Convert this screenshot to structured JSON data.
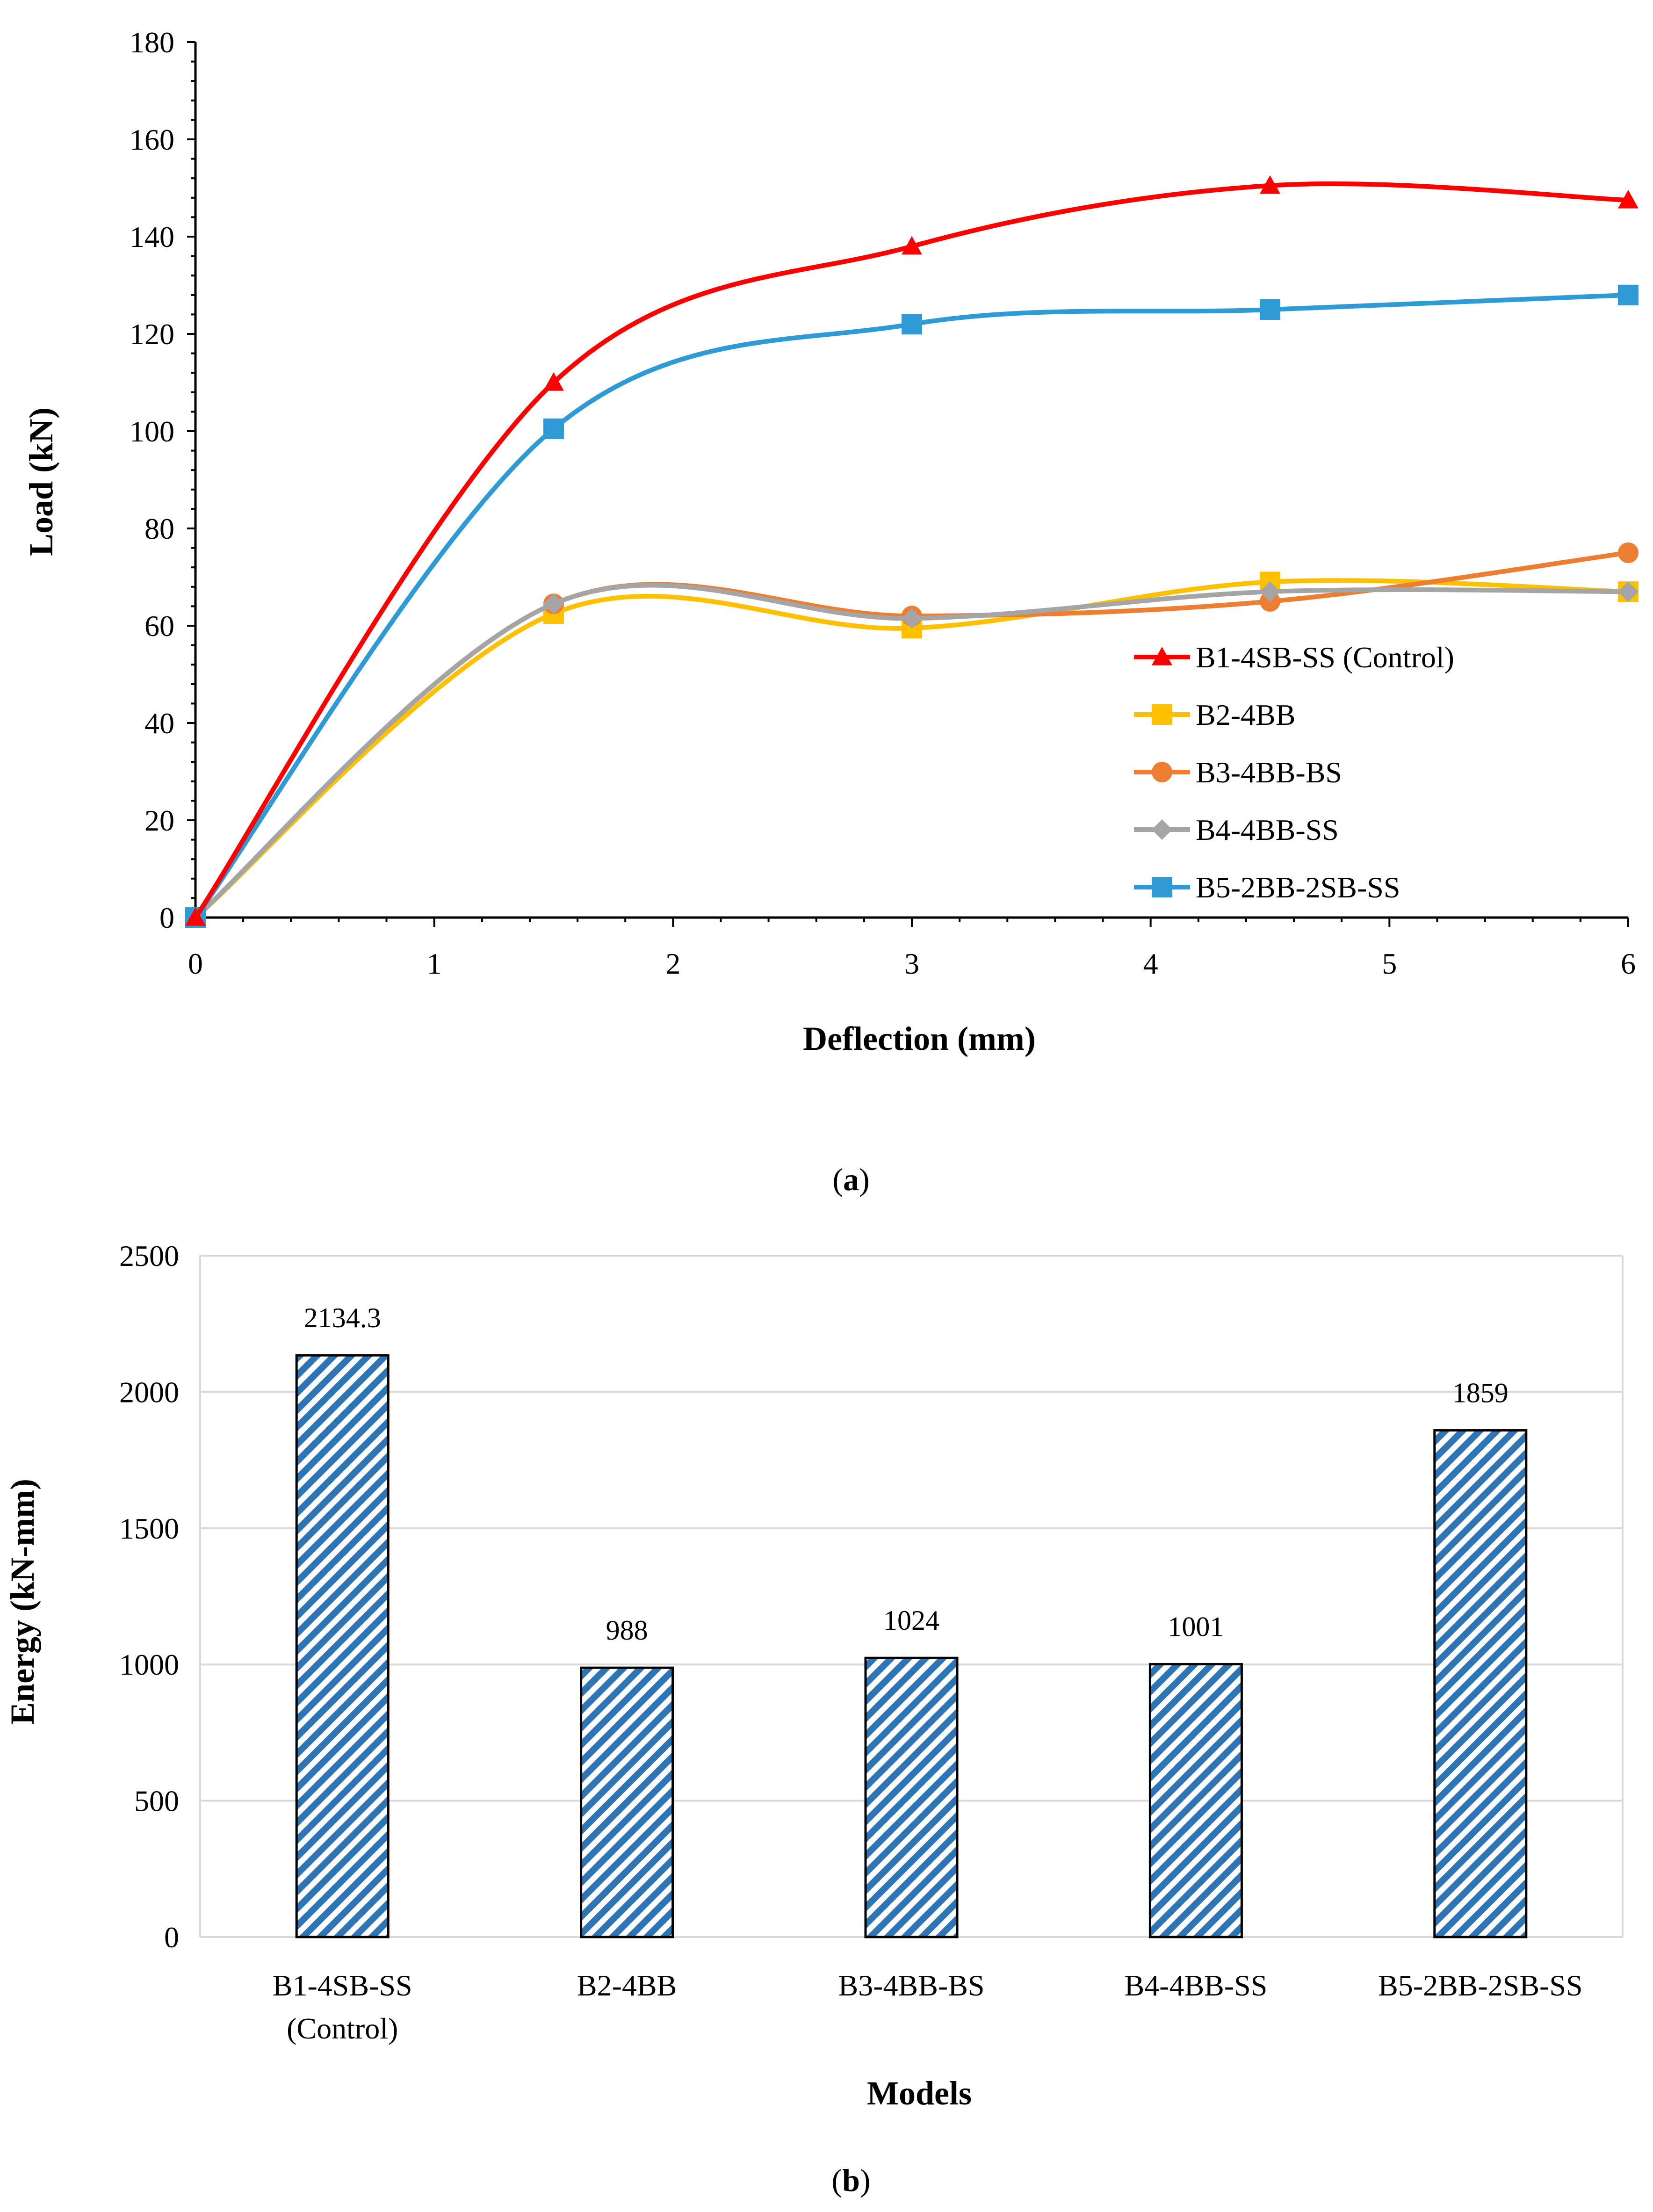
{
  "chart_data": [
    {
      "type": "line",
      "panel": "a",
      "xlabel": "Deflection (mm)",
      "ylabel": "Load (kN)",
      "xlim": [
        0,
        6
      ],
      "ylim": [
        0,
        180
      ],
      "x_ticks": [
        "0",
        "1",
        "2",
        "3",
        "4",
        "5",
        "6"
      ],
      "y_ticks": [
        "0",
        "20",
        "40",
        "60",
        "80",
        "100",
        "120",
        "140",
        "160",
        "180"
      ],
      "x": [
        0,
        1.5,
        3,
        4.5,
        6
      ],
      "series": [
        {
          "name": "B1-4SB-SS (Control)",
          "color": "#ff0000",
          "marker": "triangle",
          "values": [
            0,
            110,
            138,
            150.5,
            147.5
          ]
        },
        {
          "name": "B2-4BB",
          "color": "#ffc000",
          "marker": "square",
          "values": [
            0,
            62.5,
            59.5,
            69,
            67
          ]
        },
        {
          "name": "B3-4BB-BS",
          "color": "#ed7d31",
          "marker": "circle",
          "values": [
            0,
            64.5,
            62,
            65,
            75
          ]
        },
        {
          "name": "B4-4BB-SS",
          "color": "#a5a5a5",
          "marker": "diamond",
          "values": [
            0,
            64.5,
            61.5,
            67,
            67
          ]
        },
        {
          "name": "B5-2BB-2SB-SS",
          "color": "#2e9bd6",
          "marker": "square",
          "values": [
            0,
            100.5,
            122,
            125,
            128
          ]
        }
      ],
      "legend": [
        " B1-4SB-SS (Control)",
        " B2-4BB",
        " B3-4BB-BS",
        " B4-4BB-SS",
        " B5-2BB-2SB-SS"
      ],
      "legend_position": "bottom-right",
      "caption": "a"
    },
    {
      "type": "bar",
      "panel": "b",
      "xlabel": "Models",
      "ylabel": "Energy (kN-mm)",
      "ylim": [
        0,
        2500
      ],
      "y_ticks": [
        "0",
        "500",
        "1000",
        "1500",
        "2000",
        "2500"
      ],
      "categories": [
        [
          "B1-4SB-SS",
          "(Control)"
        ],
        [
          "B2-4BB"
        ],
        [
          "B3-4BB-BS"
        ],
        [
          "B4-4BB-SS"
        ],
        [
          "B5-2BB-2SB-SS"
        ]
      ],
      "values": [
        2134.3,
        988,
        1024,
        1001,
        1859
      ],
      "data_labels": [
        "2134.3",
        "988",
        "1024",
        "1001",
        "1859"
      ],
      "bar_color": "#2e75b6",
      "bar_fill": "diagonal-hatch",
      "grid": true,
      "caption": "b"
    }
  ]
}
